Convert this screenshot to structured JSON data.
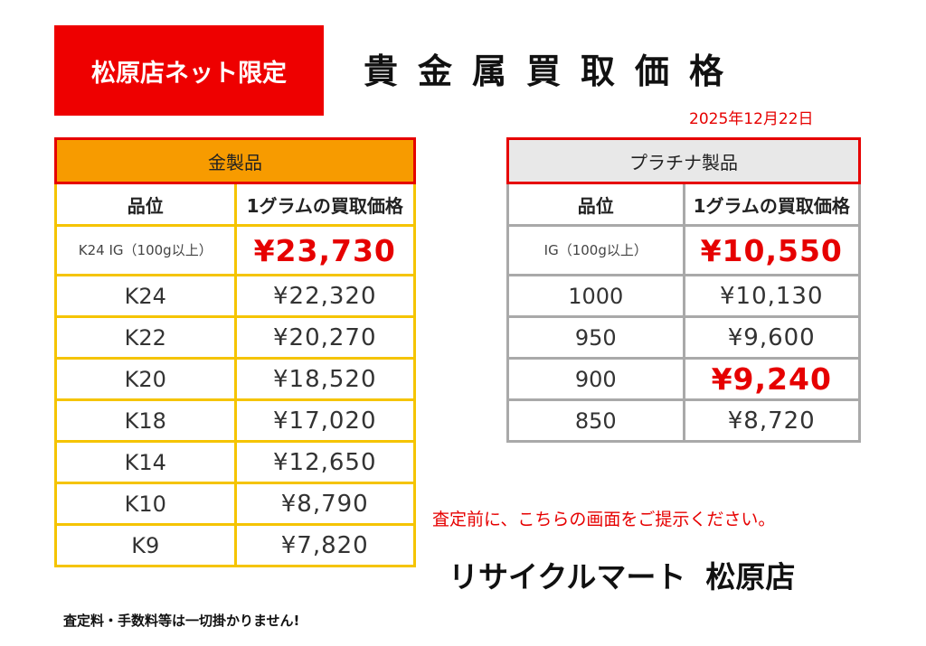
{
  "badge": "松原店ネット限定",
  "title": "貴金属買取価格",
  "date": "2025年12月22日",
  "gold": {
    "header": "金製品",
    "col_grade": "品位",
    "col_price": "1グラムの買取価格",
    "rows": [
      {
        "grade": "K24 IG（100g以上）",
        "price": "¥23,730"
      },
      {
        "grade": "K24",
        "price": "¥22,320"
      },
      {
        "grade": "K22",
        "price": "¥20,270"
      },
      {
        "grade": "K20",
        "price": "¥18,520"
      },
      {
        "grade": "K18",
        "price": "¥17,020"
      },
      {
        "grade": "K14",
        "price": "¥12,650"
      },
      {
        "grade": "K10",
        "price": "¥8,790"
      },
      {
        "grade": "K9",
        "price": "¥7,820"
      }
    ]
  },
  "platinum": {
    "header": "プラチナ製品",
    "col_grade": "品位",
    "col_price": "1グラムの買取価格",
    "rows": [
      {
        "grade": "IG（100g以上）",
        "price": "¥10,550"
      },
      {
        "grade": "1000",
        "price": "¥10,130"
      },
      {
        "grade": "950",
        "price": "¥9,600"
      },
      {
        "grade": "900",
        "price": "¥9,240"
      },
      {
        "grade": "850",
        "price": "¥8,720"
      }
    ]
  },
  "notice": "査定前に、こちらの画面をご提示ください。",
  "shop": {
    "brand": "リサイクルマート",
    "branch": "松原店"
  },
  "fee_note": "査定料・手数料等は一切掛かりません!",
  "colors": {
    "red": "#e60000",
    "gold_header": "#f79b00",
    "gold_border": "#f5c400",
    "plat_header": "#e8e8e8",
    "plat_border": "#a9a9a9"
  }
}
